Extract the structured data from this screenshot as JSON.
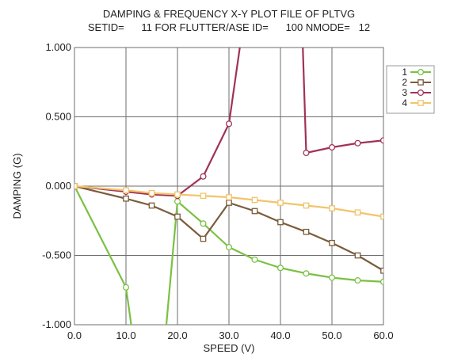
{
  "chart_data": {
    "type": "line",
    "title": "DAMPING & FREQUENCY X-Y PLOT FILE OF PLTVG",
    "subtitle": "SETID=      11 FOR FLUTTER/ASE ID=      100 NMODE=   12",
    "xlabel": "SPEED (V)",
    "ylabel": "DAMPING (G)",
    "xlim": [
      0,
      60
    ],
    "ylim": [
      -1,
      1
    ],
    "x_ticks": [
      0,
      10,
      20,
      30,
      40,
      50,
      60
    ],
    "x_tick_labels": [
      "0.0",
      "10.0",
      "20.0",
      "30.0",
      "40.0",
      "50.0",
      "60.0"
    ],
    "y_ticks": [
      1,
      0.5,
      0,
      -0.5,
      -1
    ],
    "y_tick_labels": [
      "1.000",
      "0.500",
      "0.000",
      "-0.500",
      "-1.000"
    ],
    "grid": true,
    "legend_position": "top-right",
    "series": [
      {
        "name": "1",
        "color": "#7ac142",
        "marker": "circle",
        "points": [
          [
            0,
            0
          ],
          [
            10,
            -0.73
          ],
          [
            11.4,
            -1.1
          ],
          [
            17.6,
            -1.1
          ],
          [
            20,
            -0.11
          ],
          [
            25,
            -0.27
          ],
          [
            30,
            -0.44
          ],
          [
            35,
            -0.53
          ],
          [
            40,
            -0.59
          ],
          [
            45,
            -0.63
          ],
          [
            50,
            -0.66
          ],
          [
            55,
            -0.68
          ],
          [
            60,
            -0.69
          ]
        ],
        "markers": [
          [
            0,
            0
          ],
          [
            10,
            -0.73
          ],
          [
            20,
            -0.11
          ],
          [
            25,
            -0.27
          ],
          [
            30,
            -0.44
          ],
          [
            35,
            -0.53
          ],
          [
            40,
            -0.59
          ],
          [
            45,
            -0.63
          ],
          [
            50,
            -0.66
          ],
          [
            55,
            -0.68
          ],
          [
            60,
            -0.69
          ]
        ]
      },
      {
        "name": "2",
        "color": "#7a5c3a",
        "marker": "square",
        "points": [
          [
            0,
            0
          ],
          [
            10,
            -0.09
          ],
          [
            15,
            -0.14
          ],
          [
            20,
            -0.22
          ],
          [
            25,
            -0.38
          ],
          [
            30,
            -0.12
          ],
          [
            35,
            -0.18
          ],
          [
            40,
            -0.26
          ],
          [
            45,
            -0.33
          ],
          [
            50,
            -0.41
          ],
          [
            55,
            -0.5
          ],
          [
            60,
            -0.61
          ]
        ],
        "markers": [
          [
            0,
            0
          ],
          [
            10,
            -0.09
          ],
          [
            15,
            -0.14
          ],
          [
            20,
            -0.22
          ],
          [
            25,
            -0.38
          ],
          [
            30,
            -0.12
          ],
          [
            35,
            -0.18
          ],
          [
            40,
            -0.26
          ],
          [
            45,
            -0.33
          ],
          [
            50,
            -0.41
          ],
          [
            55,
            -0.5
          ],
          [
            60,
            -0.61
          ]
        ]
      },
      {
        "name": "3",
        "color": "#a0325a",
        "marker": "circle",
        "points": [
          [
            0,
            0
          ],
          [
            10,
            -0.04
          ],
          [
            15,
            -0.06
          ],
          [
            20,
            -0.07
          ],
          [
            25,
            0.07
          ],
          [
            30,
            0.45
          ],
          [
            32.3,
            1.05
          ],
          [
            44.3,
            1.05
          ],
          [
            45,
            0.24
          ],
          [
            50,
            0.28
          ],
          [
            55,
            0.31
          ],
          [
            60,
            0.33
          ]
        ],
        "markers": [
          [
            0,
            0
          ],
          [
            10,
            -0.04
          ],
          [
            15,
            -0.06
          ],
          [
            20,
            -0.07
          ],
          [
            25,
            0.07
          ],
          [
            30,
            0.45
          ],
          [
            45,
            0.24
          ],
          [
            50,
            0.28
          ],
          [
            55,
            0.31
          ],
          [
            60,
            0.33
          ]
        ]
      },
      {
        "name": "4",
        "color": "#f2c46a",
        "marker": "square",
        "points": [
          [
            0,
            0
          ],
          [
            10,
            -0.03
          ],
          [
            15,
            -0.05
          ],
          [
            20,
            -0.06
          ],
          [
            25,
            -0.07
          ],
          [
            30,
            -0.08
          ],
          [
            35,
            -0.1
          ],
          [
            40,
            -0.12
          ],
          [
            45,
            -0.14
          ],
          [
            50,
            -0.16
          ],
          [
            55,
            -0.19
          ],
          [
            60,
            -0.22
          ]
        ],
        "markers": [
          [
            0,
            0
          ],
          [
            10,
            -0.03
          ],
          [
            15,
            -0.05
          ],
          [
            20,
            -0.06
          ],
          [
            25,
            -0.07
          ],
          [
            30,
            -0.08
          ],
          [
            35,
            -0.1
          ],
          [
            40,
            -0.12
          ],
          [
            45,
            -0.14
          ],
          [
            50,
            -0.16
          ],
          [
            55,
            -0.19
          ],
          [
            60,
            -0.22
          ]
        ]
      }
    ]
  }
}
